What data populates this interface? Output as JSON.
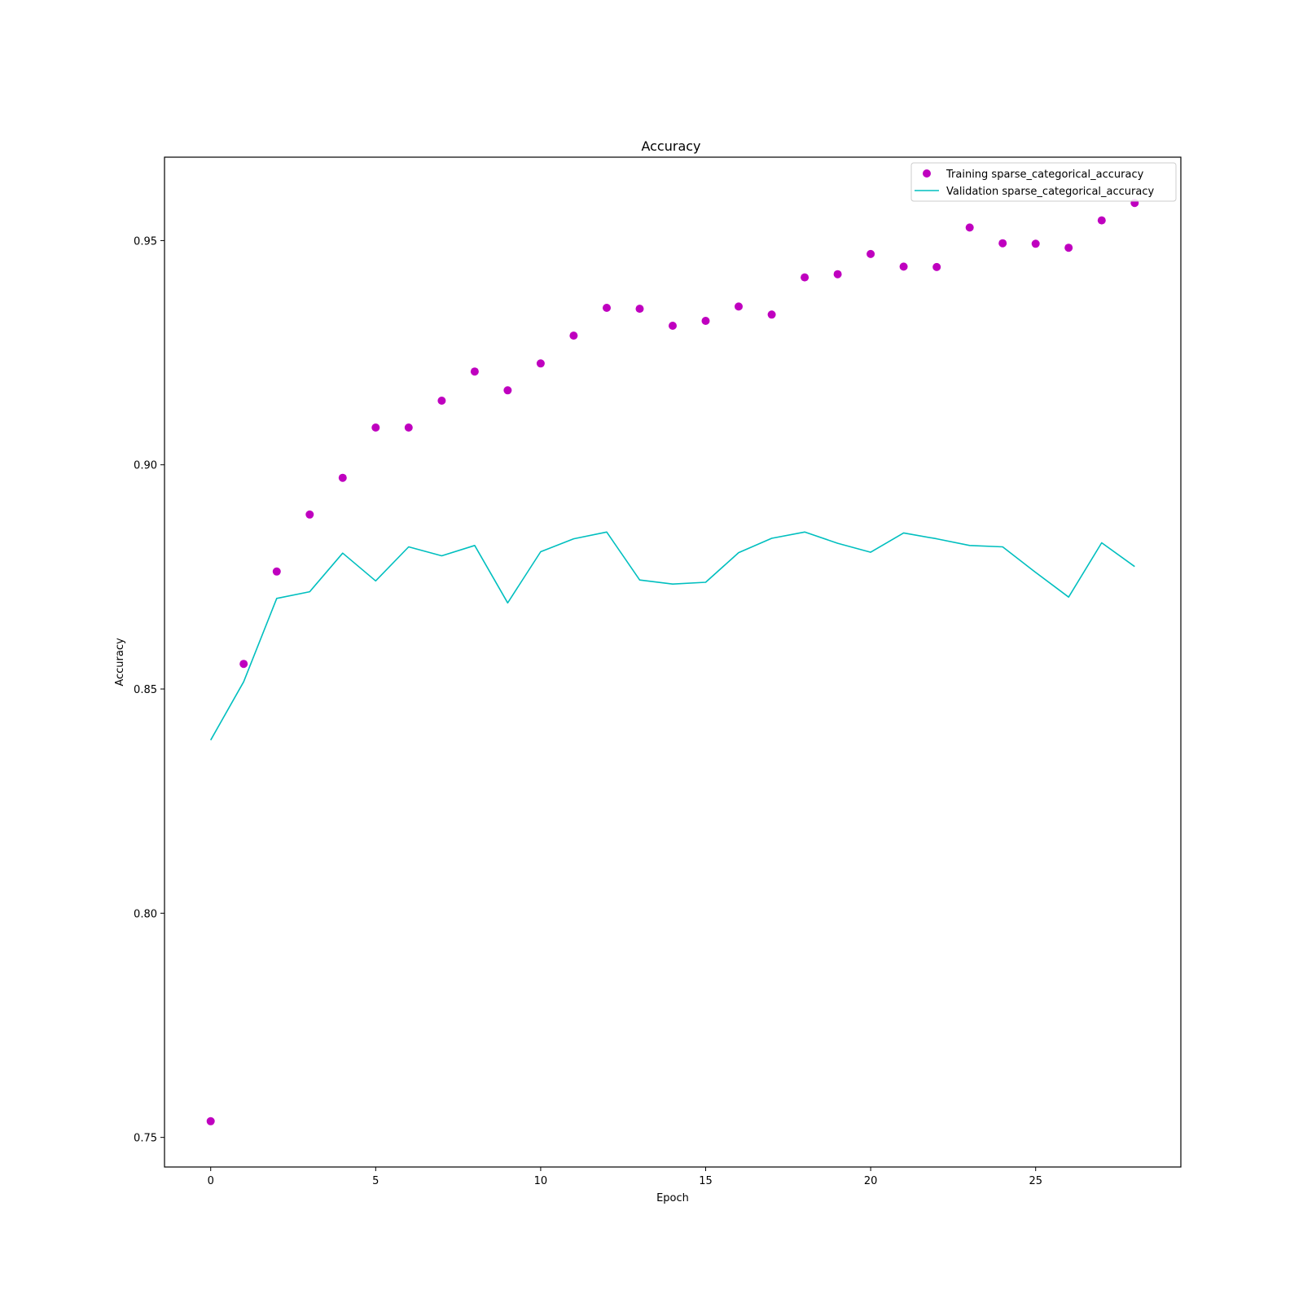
{
  "chart_data": {
    "type": "line",
    "title": "Accuracy",
    "xlabel": "Epoch",
    "ylabel": "Accuracy",
    "xlim": [
      -1.4,
      29.4
    ],
    "ylim": [
      0.7434,
      0.9686
    ],
    "x_ticks": [
      0,
      5,
      10,
      15,
      20,
      25
    ],
    "y_ticks": [
      0.75,
      0.8,
      0.85,
      0.9,
      0.95
    ],
    "grid": false,
    "legend_position": "top-right",
    "series": [
      {
        "name": "Training sparse_categorical_accuracy",
        "style": "markers",
        "color": "#bf00bf",
        "x": [
          0,
          1,
          2,
          3,
          4,
          5,
          6,
          7,
          8,
          9,
          10,
          11,
          12,
          13,
          14,
          15,
          16,
          17,
          18,
          19,
          20,
          21,
          22,
          23,
          24,
          25,
          26,
          27,
          28
        ],
        "values": [
          0.7536,
          0.8556,
          0.8762,
          0.8889,
          0.8971,
          0.9083,
          0.9083,
          0.9143,
          0.9208,
          0.9166,
          0.9226,
          0.9288,
          0.935,
          0.9348,
          0.931,
          0.9321,
          0.9353,
          0.9335,
          0.9418,
          0.9425,
          0.947,
          0.9442,
          0.9441,
          0.9529,
          0.9494,
          0.9493,
          0.9484,
          0.9545,
          0.9584
        ]
      },
      {
        "name": "Validation sparse_categorical_accuracy",
        "style": "line",
        "color": "#00bfbf",
        "x": [
          0,
          1,
          2,
          3,
          4,
          5,
          6,
          7,
          8,
          9,
          10,
          11,
          12,
          13,
          14,
          15,
          16,
          17,
          18,
          19,
          20,
          21,
          22,
          23,
          24,
          25,
          26,
          27,
          28
        ],
        "values": [
          0.8386,
          0.8516,
          0.8702,
          0.8717,
          0.8803,
          0.8741,
          0.8817,
          0.8797,
          0.882,
          0.8692,
          0.8806,
          0.8835,
          0.885,
          0.8743,
          0.8734,
          0.8738,
          0.8804,
          0.8836,
          0.885,
          0.8825,
          0.8805,
          0.8848,
          0.8835,
          0.882,
          0.8817,
          0.876,
          0.8705,
          0.8826,
          0.8773
        ]
      }
    ]
  }
}
